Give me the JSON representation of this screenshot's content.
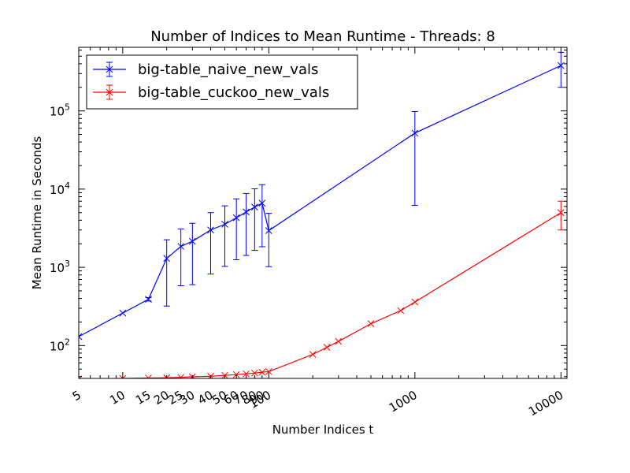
{
  "chart_data": {
    "type": "line",
    "title": "Number of Indices to Mean Runtime - Threads: 8",
    "xlabel": "Number Indices t",
    "ylabel": "Mean Runtime in Seconds",
    "x_scale": "log",
    "y_scale": "log",
    "xlim": [
      5,
      11000
    ],
    "ylim": [
      38,
      650000
    ],
    "x_tick_labels": [
      {
        "value": 5,
        "label": "5"
      },
      {
        "value": 10,
        "label": "10"
      },
      {
        "value": 15,
        "label": "15"
      },
      {
        "value": 20,
        "label": "20"
      },
      {
        "value": 25,
        "label": "25"
      },
      {
        "value": 30,
        "label": "30"
      },
      {
        "value": 40,
        "label": "40"
      },
      {
        "value": 50,
        "label": "50"
      },
      {
        "value": 60,
        "label": "60"
      },
      {
        "value": 70,
        "label": "70"
      },
      {
        "value": 80,
        "label": "80"
      },
      {
        "value": 90,
        "label": "90"
      },
      {
        "value": 100,
        "label": "100"
      },
      {
        "value": 1000,
        "label": "1000"
      },
      {
        "value": 10000,
        "label": "10000"
      }
    ],
    "y_tick_labels": [
      {
        "value": 100,
        "base": "10",
        "exp": "2"
      },
      {
        "value": 1000,
        "base": "10",
        "exp": "3"
      },
      {
        "value": 10000,
        "base": "10",
        "exp": "4"
      },
      {
        "value": 100000,
        "base": "10",
        "exp": "5"
      }
    ],
    "legend_position": "top-left",
    "grid": false,
    "series": [
      {
        "name": "big-table_naive_new_vals",
        "color": "#0000ff",
        "marker": "x",
        "points": [
          {
            "x": 5,
            "y": 130
          },
          {
            "x": 10,
            "y": 260
          },
          {
            "x": 15,
            "y": 390,
            "err_low": 370,
            "err_high": 410
          },
          {
            "x": 20,
            "y": 1300,
            "err_low": 320,
            "err_high": 2250
          },
          {
            "x": 25,
            "y": 1850,
            "err_low": 580,
            "err_high": 3100
          },
          {
            "x": 30,
            "y": 2150,
            "err_low": 600,
            "err_high": 3650
          },
          {
            "x": 40,
            "y": 3000,
            "err_low": 820,
            "err_high": 5000
          },
          {
            "x": 50,
            "y": 3550,
            "err_low": 1030,
            "err_high": 6100
          },
          {
            "x": 60,
            "y": 4300,
            "err_low": 1250,
            "err_high": 7500
          },
          {
            "x": 70,
            "y": 5100,
            "err_low": 1420,
            "err_high": 8800
          },
          {
            "x": 80,
            "y": 5900,
            "err_low": 1650,
            "err_high": 10100
          },
          {
            "x": 90,
            "y": 6600,
            "err_low": 1830,
            "err_high": 11400
          },
          {
            "x": 100,
            "y": 2950,
            "err_low": 1020,
            "err_high": 4900
          },
          {
            "x": 1000,
            "y": 52000,
            "err_low": 6200,
            "err_high": 98000
          },
          {
            "x": 10000,
            "y": 380000,
            "err_low": 200000,
            "err_high": 560000
          }
        ]
      },
      {
        "name": "big-table_cuckoo_new_vals",
        "color": "#ff0000",
        "marker": "x",
        "points": [
          {
            "x": 5,
            "y": 37.5
          },
          {
            "x": 10,
            "y": 38
          },
          {
            "x": 15,
            "y": 38.5
          },
          {
            "x": 20,
            "y": 38.7
          },
          {
            "x": 25,
            "y": 39.2
          },
          {
            "x": 30,
            "y": 39.8
          },
          {
            "x": 40,
            "y": 40.5
          },
          {
            "x": 50,
            "y": 41.5
          },
          {
            "x": 60,
            "y": 42.5
          },
          {
            "x": 70,
            "y": 43.5
          },
          {
            "x": 80,
            "y": 44.5
          },
          {
            "x": 90,
            "y": 45.5
          },
          {
            "x": 100,
            "y": 46.5
          },
          {
            "x": 200,
            "y": 77
          },
          {
            "x": 250,
            "y": 95
          },
          {
            "x": 300,
            "y": 113
          },
          {
            "x": 500,
            "y": 190
          },
          {
            "x": 800,
            "y": 280
          },
          {
            "x": 1000,
            "y": 360
          },
          {
            "x": 10000,
            "y": 5000,
            "err_low": 3000,
            "err_high": 7000
          }
        ]
      }
    ]
  }
}
